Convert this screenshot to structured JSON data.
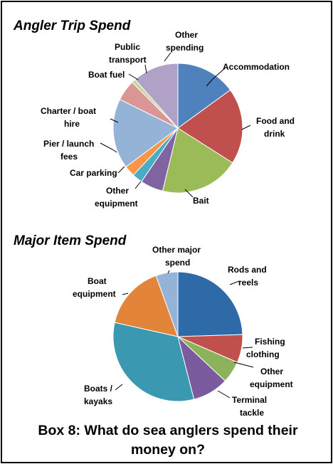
{
  "caption_line1": "Box 8: What do sea anglers spend their",
  "caption_line2": "money on?",
  "chart_data": [
    {
      "type": "pie",
      "title": "Angler Trip Spend",
      "start_angle_deg": 0,
      "direction": "clockwise",
      "slices": [
        {
          "label": "Accommodation",
          "value": 15.0,
          "color": "#4F81BD"
        },
        {
          "label": "Food and drink",
          "value": 19.0,
          "color": "#C0504D"
        },
        {
          "label": "Bait",
          "value": 19.8,
          "color": "#9BBB59"
        },
        {
          "label": "Other equipment",
          "value": 5.7,
          "color": "#8064A2"
        },
        {
          "label": "Car parking",
          "value": 2.6,
          "color": "#4BACC6"
        },
        {
          "label": "Pier / launch fees",
          "value": 2.7,
          "color": "#F79646"
        },
        {
          "label": "Charter / boat hire",
          "value": 17.5,
          "color": "#95B3D7"
        },
        {
          "label": "Boat fuel",
          "value": 5.2,
          "color": "#D99694"
        },
        {
          "label": "Public transport",
          "value": 1.0,
          "color": "#C3D69B"
        },
        {
          "label": "Other spending",
          "value": 11.5,
          "color": "#B2A1C7"
        }
      ]
    },
    {
      "type": "pie",
      "title": "Major Item Spend",
      "start_angle_deg": 0,
      "direction": "clockwise",
      "slices": [
        {
          "label": "Rods and reels",
          "value": 24.5,
          "color": "#2E6AA8"
        },
        {
          "label": "Fishing clothing",
          "value": 7.0,
          "color": "#C0504D"
        },
        {
          "label": "Other equipment",
          "value": 5.5,
          "color": "#8DB35A"
        },
        {
          "label": "Terminal tackle",
          "value": 9.0,
          "color": "#7A5C9E"
        },
        {
          "label": "Boats / kayaks",
          "value": 32.5,
          "color": "#3A98B0"
        },
        {
          "label": "Boat equipment",
          "value": 16.0,
          "color": "#E2853A"
        },
        {
          "label": "Other major spend",
          "value": 5.5,
          "color": "#95B3D7"
        }
      ]
    }
  ]
}
